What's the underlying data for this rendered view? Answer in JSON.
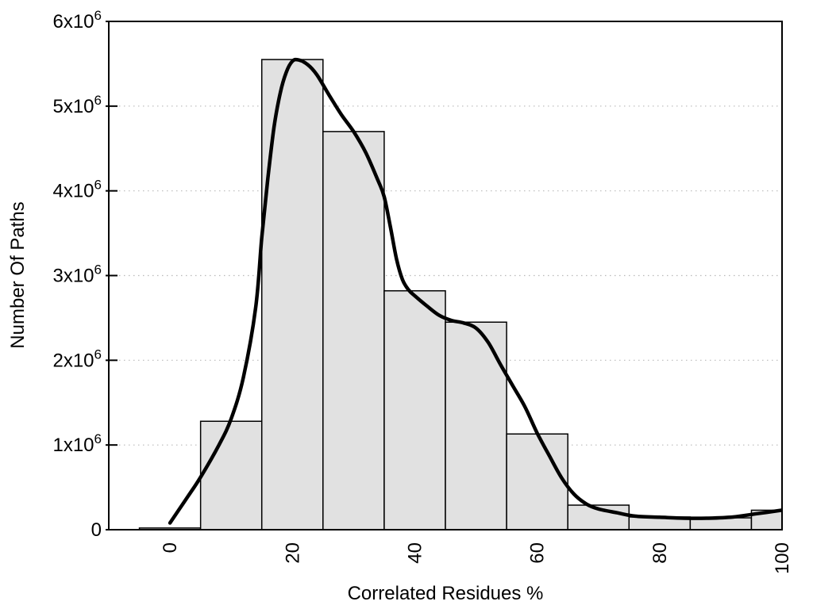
{
  "chart_data": {
    "type": "bar",
    "subtype": "histogram-with-smoothed-curve",
    "title": "",
    "xlabel": "Correlated Residues %",
    "ylabel": "Number Of Paths",
    "xlim": [
      -10,
      100
    ],
    "ylim": [
      0,
      6000000
    ],
    "grid": "horizontal-dotted",
    "legend": "none",
    "x_ticks": [
      {
        "value": 0,
        "label": "0"
      },
      {
        "value": 20,
        "label": "20"
      },
      {
        "value": 40,
        "label": "40"
      },
      {
        "value": 60,
        "label": "60"
      },
      {
        "value": 80,
        "label": "80"
      },
      {
        "value": 100,
        "label": "100"
      }
    ],
    "y_ticks": [
      {
        "value": 0,
        "mantissa": "0",
        "exponent": ""
      },
      {
        "value": 1000000,
        "mantissa": "1x10",
        "exponent": "6"
      },
      {
        "value": 2000000,
        "mantissa": "2x10",
        "exponent": "6"
      },
      {
        "value": 3000000,
        "mantissa": "3x10",
        "exponent": "6"
      },
      {
        "value": 4000000,
        "mantissa": "4x10",
        "exponent": "6"
      },
      {
        "value": 5000000,
        "mantissa": "5x10",
        "exponent": "6"
      },
      {
        "value": 6000000,
        "mantissa": "6x10",
        "exponent": "6"
      }
    ],
    "bars": {
      "bin_width": 10,
      "centers": [
        0,
        10,
        20,
        30,
        40,
        50,
        60,
        70,
        80,
        90,
        100
      ],
      "values": [
        20000,
        1280000,
        5550000,
        4700000,
        2820000,
        2450000,
        1130000,
        290000,
        150000,
        140000,
        230000
      ],
      "fill": "#e1e1e1",
      "stroke": "#000000"
    },
    "curve": {
      "color": "#000000",
      "stroke_width": 4.5,
      "points": [
        [
          0,
          80000
        ],
        [
          3,
          400000
        ],
        [
          5,
          620000
        ],
        [
          8,
          1000000
        ],
        [
          10,
          1310000
        ],
        [
          12,
          1800000
        ],
        [
          14,
          2620000
        ],
        [
          15,
          3450000
        ],
        [
          16,
          4150000
        ],
        [
          17,
          4750000
        ],
        [
          18,
          5150000
        ],
        [
          19,
          5400000
        ],
        [
          20,
          5530000
        ],
        [
          21,
          5545000
        ],
        [
          22.5,
          5490000
        ],
        [
          24,
          5370000
        ],
        [
          26,
          5130000
        ],
        [
          28,
          4900000
        ],
        [
          30,
          4700000
        ],
        [
          32,
          4450000
        ],
        [
          34,
          4120000
        ],
        [
          35,
          3930000
        ],
        [
          36,
          3580000
        ],
        [
          37,
          3200000
        ],
        [
          38,
          2950000
        ],
        [
          39,
          2830000
        ],
        [
          40,
          2760000
        ],
        [
          42,
          2640000
        ],
        [
          44,
          2530000
        ],
        [
          46,
          2470000
        ],
        [
          48,
          2440000
        ],
        [
          50,
          2380000
        ],
        [
          52,
          2210000
        ],
        [
          54,
          1950000
        ],
        [
          56,
          1700000
        ],
        [
          58,
          1450000
        ],
        [
          60,
          1140000
        ],
        [
          62,
          870000
        ],
        [
          64,
          610000
        ],
        [
          66,
          420000
        ],
        [
          68,
          305000
        ],
        [
          70,
          245000
        ],
        [
          73,
          200000
        ],
        [
          76,
          160000
        ],
        [
          80,
          147000
        ],
        [
          84,
          136000
        ],
        [
          88,
          136000
        ],
        [
          92,
          150000
        ],
        [
          96,
          190000
        ],
        [
          100,
          230000
        ]
      ]
    },
    "colors": {
      "frame": "#000000",
      "gridline": "#b9b9b9",
      "background": "#ffffff"
    }
  }
}
